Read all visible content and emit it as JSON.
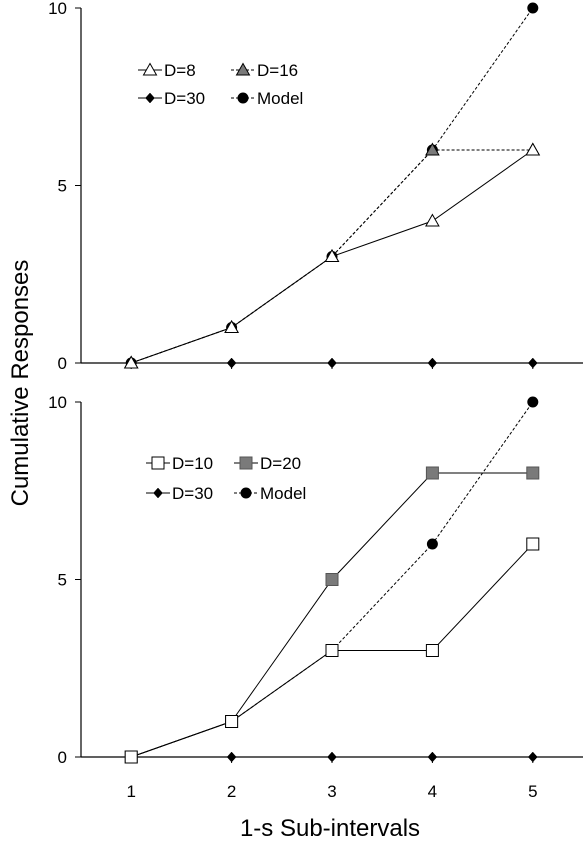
{
  "figure": {
    "ylabel": "Cumulative Responses",
    "xlabel": "1-s Sub-intervals"
  },
  "chart_data": [
    {
      "type": "line",
      "panel": "top",
      "x": [
        1,
        2,
        3,
        4,
        5
      ],
      "xlim": [
        0.5,
        5.5
      ],
      "ylim": [
        0,
        10
      ],
      "yticks": [
        0,
        5,
        10
      ],
      "xticks_labeled": false,
      "grid": false,
      "legend_position": "top-left",
      "series": [
        {
          "name": "D=8",
          "marker": "triangle-open",
          "line": "solid",
          "values": [
            0,
            1,
            3,
            4,
            6
          ]
        },
        {
          "name": "D=16",
          "marker": "triangle-filled",
          "line": "dotted",
          "values": [
            0,
            1,
            3,
            6,
            6
          ]
        },
        {
          "name": "D=30",
          "marker": "diamond",
          "line": "solid",
          "values": [
            0,
            0,
            0,
            0,
            0
          ]
        },
        {
          "name": "Model",
          "marker": "circle",
          "line": "dotted",
          "values": [
            0,
            1,
            3,
            6,
            10
          ]
        }
      ]
    },
    {
      "type": "line",
      "panel": "bottom",
      "x": [
        1,
        2,
        3,
        4,
        5
      ],
      "xlim": [
        0.5,
        5.5
      ],
      "ylim": [
        0,
        10
      ],
      "yticks": [
        0,
        5,
        10
      ],
      "xticks_labeled": true,
      "grid": false,
      "legend_position": "top-left",
      "series": [
        {
          "name": "D=10",
          "marker": "square-open",
          "line": "solid",
          "values": [
            0,
            1,
            3,
            3,
            6
          ]
        },
        {
          "name": "D=20",
          "marker": "square-gray",
          "line": "solid",
          "values": [
            0,
            1,
            5,
            8,
            8
          ]
        },
        {
          "name": "D=30",
          "marker": "diamond",
          "line": "solid",
          "values": [
            0,
            0,
            0,
            0,
            0
          ]
        },
        {
          "name": "Model",
          "marker": "circle",
          "line": "dotted",
          "values": [
            0,
            1,
            3,
            6,
            10
          ]
        }
      ]
    }
  ]
}
